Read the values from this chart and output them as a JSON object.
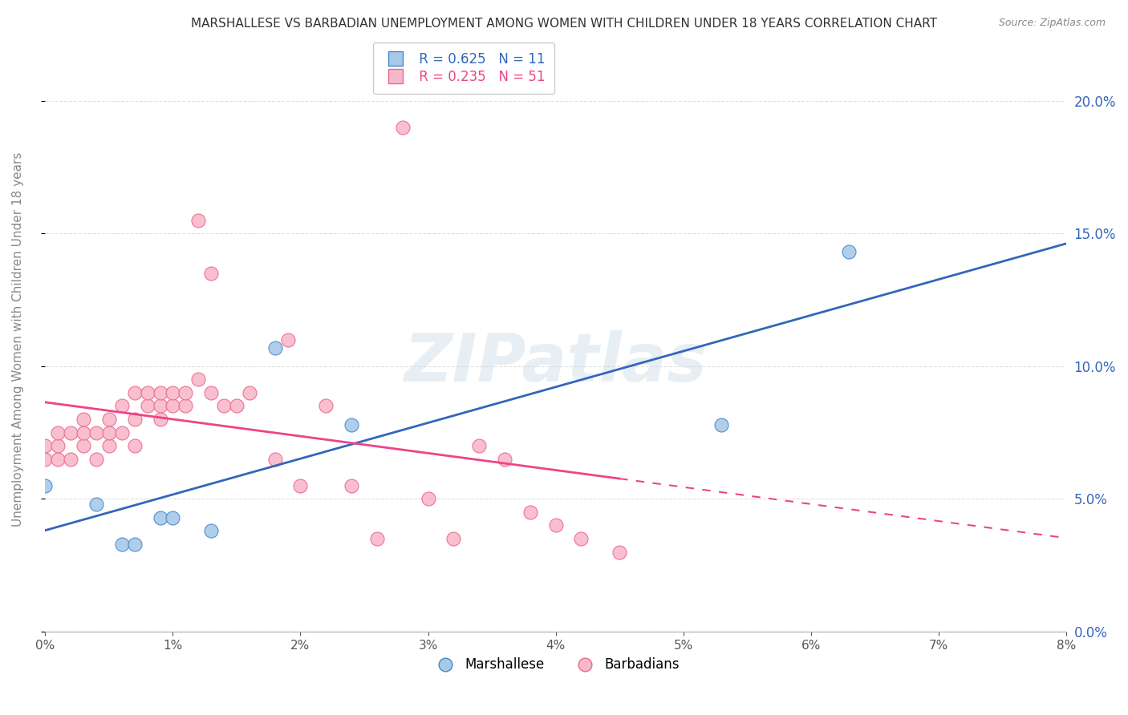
{
  "title": "MARSHALLESE VS BARBADIAN UNEMPLOYMENT AMONG WOMEN WITH CHILDREN UNDER 18 YEARS CORRELATION CHART",
  "source": "Source: ZipAtlas.com",
  "ylabel": "Unemployment Among Women with Children Under 18 years",
  "xlim": [
    0.0,
    0.08
  ],
  "ylim": [
    0.0,
    0.22
  ],
  "xticks": [
    0.0,
    0.01,
    0.02,
    0.03,
    0.04,
    0.05,
    0.06,
    0.07,
    0.08
  ],
  "yticks": [
    0.0,
    0.05,
    0.1,
    0.15,
    0.2
  ],
  "legend1_r": "0.625",
  "legend1_n": "11",
  "legend2_r": "0.235",
  "legend2_n": "51",
  "blue_fill": "#a8c8e8",
  "pink_fill": "#f8b8cc",
  "blue_edge": "#4488cc",
  "pink_edge": "#ee6688",
  "blue_line": "#3366bb",
  "pink_line": "#ee4488",
  "marshallese_x": [
    0.0,
    0.004,
    0.006,
    0.007,
    0.009,
    0.01,
    0.013,
    0.018,
    0.024,
    0.053,
    0.063
  ],
  "marshallese_y": [
    0.055,
    0.048,
    0.033,
    0.033,
    0.043,
    0.043,
    0.038,
    0.107,
    0.078,
    0.078,
    0.143
  ],
  "barbadians_x": [
    0.0,
    0.0,
    0.001,
    0.001,
    0.001,
    0.002,
    0.002,
    0.003,
    0.003,
    0.003,
    0.004,
    0.004,
    0.005,
    0.005,
    0.005,
    0.006,
    0.006,
    0.007,
    0.007,
    0.007,
    0.008,
    0.008,
    0.009,
    0.009,
    0.009,
    0.01,
    0.01,
    0.011,
    0.011,
    0.012,
    0.012,
    0.013,
    0.013,
    0.014,
    0.015,
    0.016,
    0.018,
    0.019,
    0.02,
    0.022,
    0.024,
    0.026,
    0.028,
    0.03,
    0.032,
    0.034,
    0.036,
    0.038,
    0.04,
    0.042,
    0.045
  ],
  "barbadians_y": [
    0.065,
    0.07,
    0.065,
    0.07,
    0.075,
    0.065,
    0.075,
    0.07,
    0.075,
    0.08,
    0.065,
    0.075,
    0.07,
    0.075,
    0.08,
    0.075,
    0.085,
    0.07,
    0.08,
    0.09,
    0.085,
    0.09,
    0.08,
    0.085,
    0.09,
    0.085,
    0.09,
    0.085,
    0.09,
    0.095,
    0.155,
    0.09,
    0.135,
    0.085,
    0.085,
    0.09,
    0.065,
    0.11,
    0.055,
    0.085,
    0.055,
    0.035,
    0.19,
    0.05,
    0.035,
    0.07,
    0.065,
    0.045,
    0.04,
    0.035,
    0.03
  ],
  "bg_color": "#ffffff",
  "grid_color": "#e0e0e0",
  "title_color": "#333333",
  "source_color": "#888888",
  "axis_color": "#888888",
  "tick_color": "#555555"
}
